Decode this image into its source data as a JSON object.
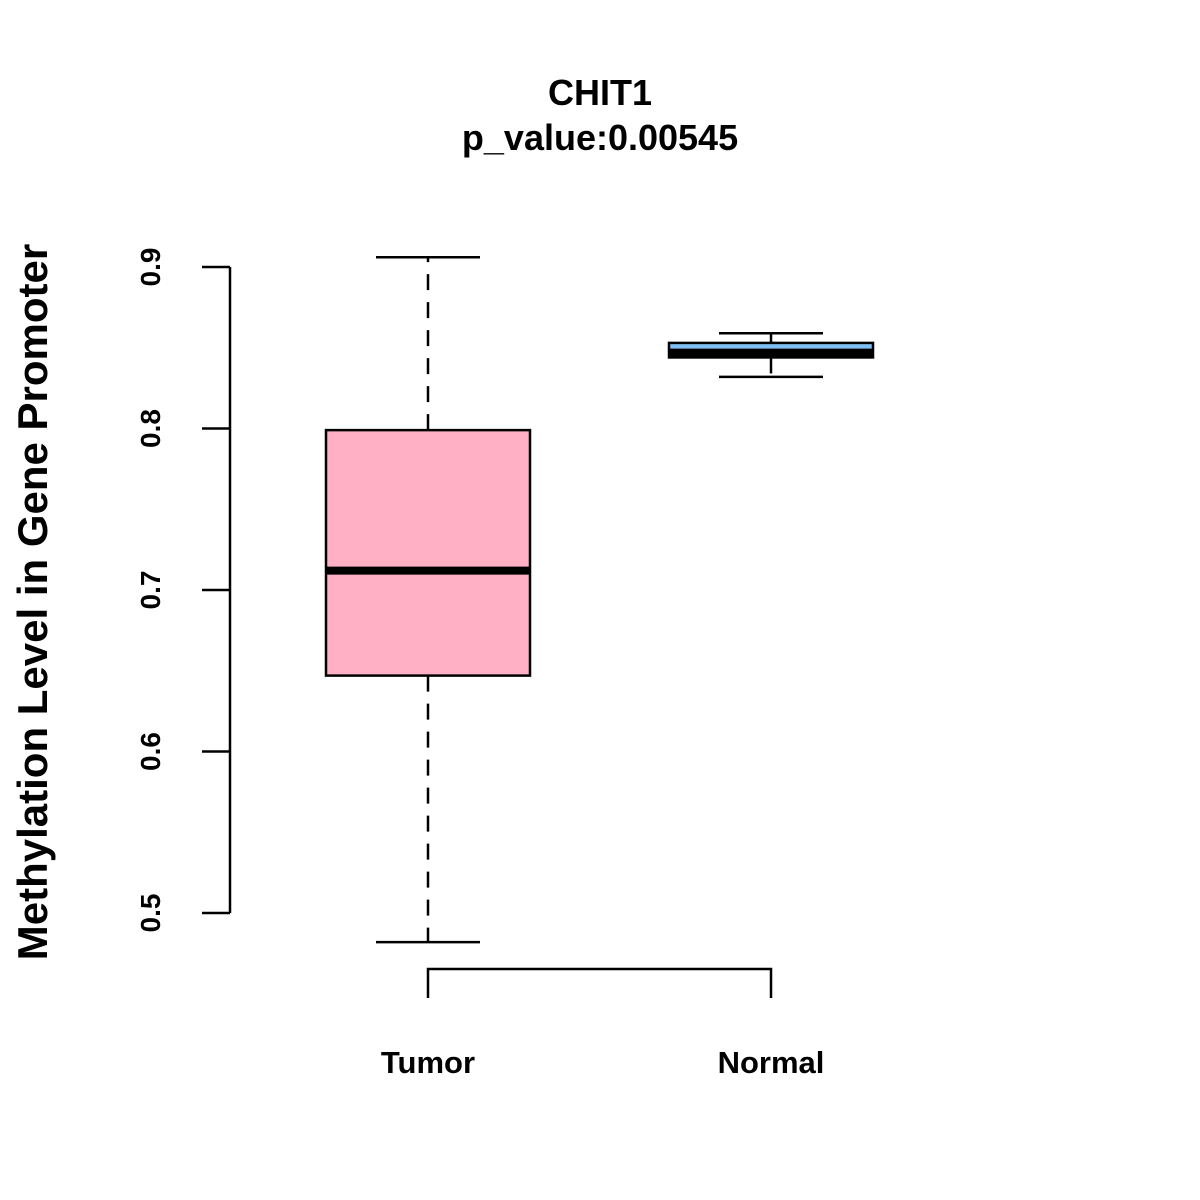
{
  "chart_data": {
    "type": "boxplot",
    "title": "CHIT1",
    "subtitle": "p_value:0.00545",
    "xlabel": "",
    "ylabel": "Methylation Level in Gene Promoter",
    "ylim": [
      0.48,
      0.9
    ],
    "yticks": [
      0.5,
      0.6,
      0.7,
      0.8,
      0.9
    ],
    "ytick_labels": [
      "0.5",
      "0.6",
      "0.7",
      "0.8",
      "0.9"
    ],
    "categories": [
      "Tumor",
      "Normal"
    ],
    "groups": [
      {
        "name": "Tumor",
        "whisker_low": 0.482,
        "q1": 0.647,
        "median": 0.712,
        "q3": 0.799,
        "whisker_high": 0.906,
        "color": "#FFB0C4"
      },
      {
        "name": "Normal",
        "whisker_low": 0.832,
        "q1": 0.844,
        "median": 0.847,
        "q3": 0.853,
        "whisker_high": 0.859,
        "color": "#7FBFF5"
      }
    ],
    "significance_bracket": {
      "from": "Tumor",
      "to": "Normal"
    },
    "grid": false
  }
}
